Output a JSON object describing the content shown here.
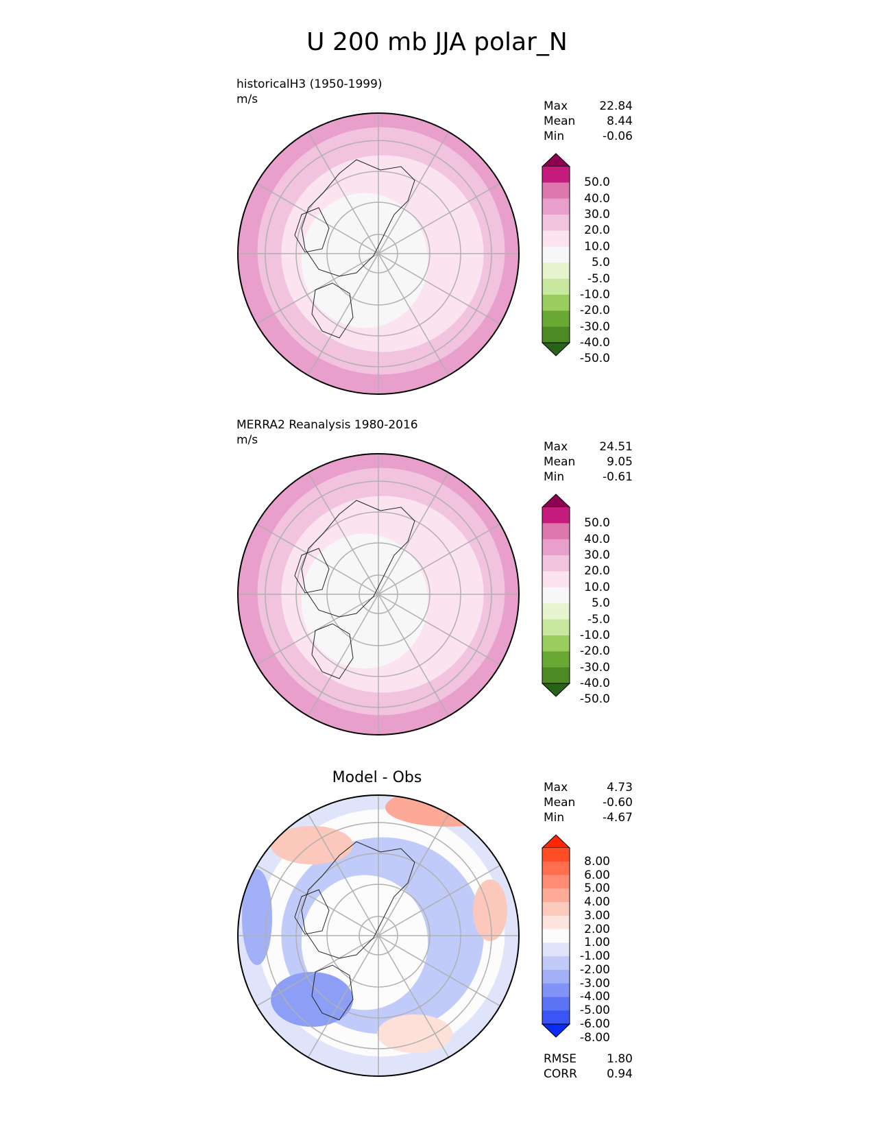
{
  "title": "U 200 mb JJA polar_N",
  "panels": [
    {
      "title": "historicalH3 (1950-1999)",
      "units": "m/s",
      "stats": {
        "max_label": "Max",
        "max": "22.84",
        "mean_label": "Mean",
        "mean": "8.44",
        "min_label": "Min",
        "min": "-0.06"
      },
      "colorbar": {
        "ticks": [
          "50.0",
          "40.0",
          "30.0",
          "20.0",
          "10.0",
          "5.0",
          "-5.0",
          "-10.0",
          "-20.0",
          "-30.0",
          "-40.0",
          "-50.0"
        ],
        "colors": [
          "#8e0152",
          "#c51b7d",
          "#de77ae",
          "#e89fcb",
          "#f1c3df",
          "#fbe4f0",
          "#f7f7f7",
          "#e6f5d0",
          "#c8e8a0",
          "#9bcd5e",
          "#6aa834",
          "#4d8a24",
          "#276419"
        ]
      },
      "field": {
        "core": "#f7f7f7",
        "ring1": "#fbe4f0",
        "ring2": "#f1c3df",
        "edge": "#e89fcb"
      }
    },
    {
      "title": "MERRA2 Reanalysis 1980-2016",
      "units": "m/s",
      "stats": {
        "max_label": "Max",
        "max": "24.51",
        "mean_label": "Mean",
        "mean": "9.05",
        "min_label": "Min",
        "min": "-0.61"
      },
      "colorbar": {
        "ticks": [
          "50.0",
          "40.0",
          "30.0",
          "20.0",
          "10.0",
          "5.0",
          "-5.0",
          "-10.0",
          "-20.0",
          "-30.0",
          "-40.0",
          "-50.0"
        ],
        "colors": [
          "#8e0152",
          "#c51b7d",
          "#de77ae",
          "#e89fcb",
          "#f1c3df",
          "#fbe4f0",
          "#f7f7f7",
          "#e6f5d0",
          "#c8e8a0",
          "#9bcd5e",
          "#6aa834",
          "#4d8a24",
          "#276419"
        ]
      },
      "field": {
        "core": "#f7f7f7",
        "ring1": "#fbe4f0",
        "ring2": "#f1c3df",
        "edge": "#e89fcb"
      }
    },
    {
      "title": "Model - Obs",
      "units": "",
      "stats": {
        "max_label": "Max",
        "max": "4.73",
        "mean_label": "Mean",
        "mean": "-0.60",
        "min_label": "Min",
        "min": "-4.67"
      },
      "colorbar": {
        "ticks": [
          "8.00",
          "6.00",
          "5.00",
          "4.00",
          "3.00",
          "2.00",
          "1.00",
          "-1.00",
          "-2.00",
          "-3.00",
          "-4.00",
          "-5.00",
          "-6.00",
          "-8.00"
        ],
        "colors": [
          "#ff2600",
          "#ff4d26",
          "#ff6e4f",
          "#ff8c73",
          "#fdab98",
          "#fccabd",
          "#fde5de",
          "#fcfcfc",
          "#dfe4fb",
          "#c0cbf9",
          "#a2b0f8",
          "#8193f6",
          "#5c73f5",
          "#3a55f4",
          "#0a2af5"
        ]
      },
      "field": {
        "core": "#fcfcfc",
        "ring1": "#c0cbf9",
        "ring2": "#fcfcfc",
        "edge": "#dfe4fb"
      }
    }
  ],
  "diff_scores": {
    "rmse_label": "RMSE",
    "rmse": "1.80",
    "corr_label": "CORR",
    "corr": "0.94"
  }
}
